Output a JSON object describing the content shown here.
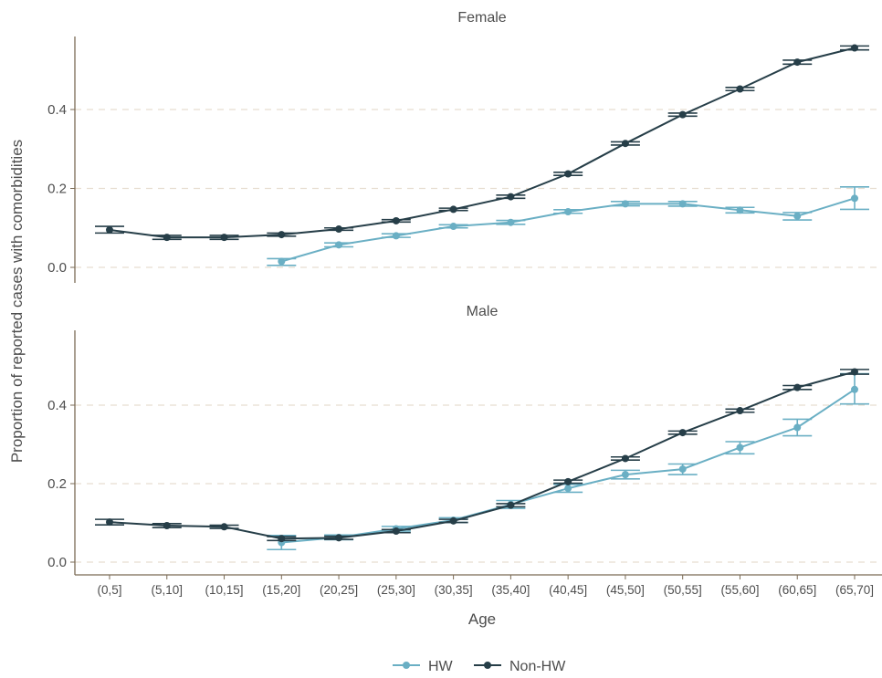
{
  "chart_data": {
    "type": "line",
    "xlabel": "Age",
    "ylabel": "Proportion of reported cases with comorbidities",
    "categories": [
      "(0,5]",
      "(5,10]",
      "(10,15]",
      "(15,20]",
      "(20,25]",
      "(25,30]",
      "(30,35]",
      "(35,40]",
      "(40,45]",
      "(45,50]",
      "(50,55]",
      "(55,60]",
      "(60,65]",
      "(65,70]"
    ],
    "ylim": [
      0,
      0.57
    ],
    "yticks": [
      "0.0",
      "0.2",
      "0.4"
    ],
    "legend": {
      "position": "bottom"
    },
    "colors": {
      "HW": "#6aafc4",
      "Non-HW": "#263e48"
    },
    "panels": [
      {
        "title": "Female",
        "series": [
          {
            "name": "HW",
            "values": [
              null,
              null,
              null,
              0.015,
              0.057,
              0.08,
              0.104,
              0.114,
              0.141,
              0.161,
              0.161,
              0.145,
              0.13,
              0.175
            ],
            "lower": [
              null,
              null,
              null,
              0.005,
              0.052,
              0.076,
              0.1,
              0.109,
              0.137,
              0.156,
              0.155,
              0.138,
              0.12,
              0.147
            ],
            "upper": [
              null,
              null,
              null,
              0.022,
              0.062,
              0.085,
              0.108,
              0.119,
              0.146,
              0.167,
              0.167,
              0.152,
              0.139,
              0.204
            ]
          },
          {
            "name": "Non-HW",
            "values": [
              0.095,
              0.076,
              0.076,
              0.083,
              0.097,
              0.118,
              0.147,
              0.179,
              0.237,
              0.314,
              0.387,
              0.452,
              0.52,
              0.556
            ],
            "lower": [
              0.087,
              0.071,
              0.071,
              0.079,
              0.094,
              0.115,
              0.144,
              0.175,
              0.233,
              0.31,
              0.383,
              0.448,
              0.515,
              0.551
            ],
            "upper": [
              0.104,
              0.081,
              0.081,
              0.087,
              0.1,
              0.121,
              0.15,
              0.183,
              0.241,
              0.318,
              0.391,
              0.456,
              0.525,
              0.561
            ]
          }
        ]
      },
      {
        "title": "Male",
        "series": [
          {
            "name": "HW",
            "values": [
              null,
              null,
              null,
              0.05,
              0.063,
              0.085,
              0.107,
              0.147,
              0.188,
              0.223,
              0.237,
              0.292,
              0.343,
              0.44
            ],
            "lower": [
              null,
              null,
              null,
              0.032,
              0.057,
              0.079,
              0.101,
              0.137,
              0.178,
              0.212,
              0.223,
              0.276,
              0.322,
              0.403
            ],
            "upper": [
              null,
              null,
              null,
              0.068,
              0.069,
              0.091,
              0.113,
              0.157,
              0.198,
              0.234,
              0.25,
              0.307,
              0.364,
              0.48
            ]
          },
          {
            "name": "Non-HW",
            "values": [
              0.102,
              0.093,
              0.09,
              0.06,
              0.062,
              0.079,
              0.105,
              0.145,
              0.205,
              0.264,
              0.33,
              0.386,
              0.445,
              0.485
            ],
            "lower": [
              0.095,
              0.088,
              0.086,
              0.055,
              0.058,
              0.075,
              0.101,
              0.141,
              0.201,
              0.26,
              0.326,
              0.382,
              0.44,
              0.479
            ],
            "upper": [
              0.109,
              0.098,
              0.094,
              0.065,
              0.066,
              0.083,
              0.109,
              0.149,
              0.209,
              0.268,
              0.334,
              0.39,
              0.45,
              0.491
            ]
          }
        ]
      }
    ]
  }
}
